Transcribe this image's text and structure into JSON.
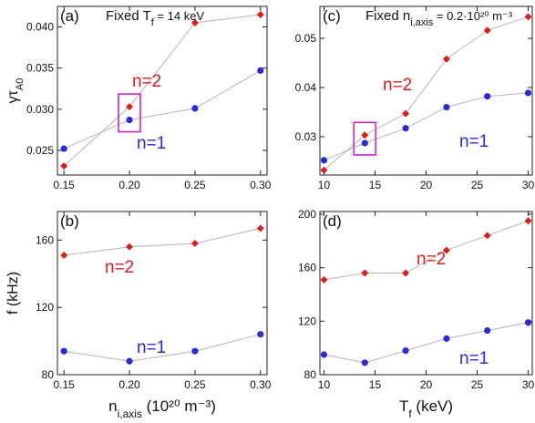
{
  "colors": {
    "n2": "#dd1c1c",
    "n1": "#2b2bd6",
    "line": "#b5b5b5",
    "box": "#cc22cc"
  },
  "chart_data": [
    {
      "id": "a",
      "type": "line",
      "panel_label": "(a)",
      "title": "Fixed T",
      "title_sub": "f",
      "title_tail": " = 14 keV",
      "ylabel_main": "γτ",
      "ylabel_sub": "A0",
      "x": [
        0.15,
        0.2,
        0.25,
        0.3
      ],
      "xlim": [
        0.145,
        0.305
      ],
      "ylim": [
        0.022,
        0.0425
      ],
      "xticks": [
        "0.15",
        "0.20",
        "0.25",
        "0.30"
      ],
      "yticks": [
        "0.025",
        "0.030",
        "0.035",
        "0.040"
      ],
      "series": [
        {
          "name": "n=2",
          "values": [
            0.0231,
            0.0303,
            0.0405,
            0.0415
          ]
        },
        {
          "name": "n=1",
          "values": [
            0.0252,
            0.0287,
            0.0301,
            0.0347
          ]
        }
      ],
      "highlight_index": 1
    },
    {
      "id": "c",
      "type": "line",
      "panel_label": "(c)",
      "title": "Fixed n",
      "title_sub": "i,axis",
      "title_tail": " = 0.2·10²⁰ m⁻³",
      "x": [
        10,
        14,
        18,
        22,
        26,
        30
      ],
      "xlim": [
        9.6,
        30.4
      ],
      "ylim": [
        0.0222,
        0.0565
      ],
      "xticks": [
        "10",
        "15",
        "20",
        "25",
        "30"
      ],
      "yticks": [
        "0.03",
        "0.04",
        "0.05"
      ],
      "series": [
        {
          "name": "n=2",
          "values": [
            0.0232,
            0.0303,
            0.0347,
            0.0458,
            0.0516,
            0.0544
          ]
        },
        {
          "name": "n=1",
          "values": [
            0.0252,
            0.0287,
            0.0317,
            0.036,
            0.0382,
            0.0389
          ]
        }
      ],
      "highlight_index": 1
    },
    {
      "id": "b",
      "type": "line",
      "panel_label": "(b)",
      "ylabel_main": "f (kHz)",
      "xlabel_main": "n",
      "xlabel_sub": "i,axis",
      "xlabel_tail": " (10²⁰ m⁻³)",
      "x": [
        0.15,
        0.2,
        0.25,
        0.3
      ],
      "xlim": [
        0.145,
        0.305
      ],
      "ylim": [
        80,
        177
      ],
      "xticks": [
        "0.15",
        "0.20",
        "0.25",
        "0.30"
      ],
      "yticks": [
        "80",
        "120",
        "160"
      ],
      "series": [
        {
          "name": "n=2",
          "values": [
            151,
            156,
            158,
            167
          ]
        },
        {
          "name": "n=1",
          "values": [
            94,
            88,
            94,
            104
          ]
        }
      ]
    },
    {
      "id": "d",
      "type": "line",
      "panel_label": "(d)",
      "xlabel_main": "T",
      "xlabel_sub": "f",
      "xlabel_tail": " (keV)",
      "x": [
        10,
        14,
        18,
        22,
        26,
        30
      ],
      "xlim": [
        9.6,
        30.4
      ],
      "ylim": [
        80,
        202
      ],
      "xticks": [
        "10",
        "15",
        "20",
        "25",
        "30"
      ],
      "yticks": [
        "80",
        "120",
        "160",
        "200"
      ],
      "series": [
        {
          "name": "n=2",
          "values": [
            151,
            156,
            156,
            173,
            184,
            195
          ]
        },
        {
          "name": "n=1",
          "values": [
            95,
            89,
            98,
            107,
            113,
            119
          ]
        }
      ]
    }
  ]
}
